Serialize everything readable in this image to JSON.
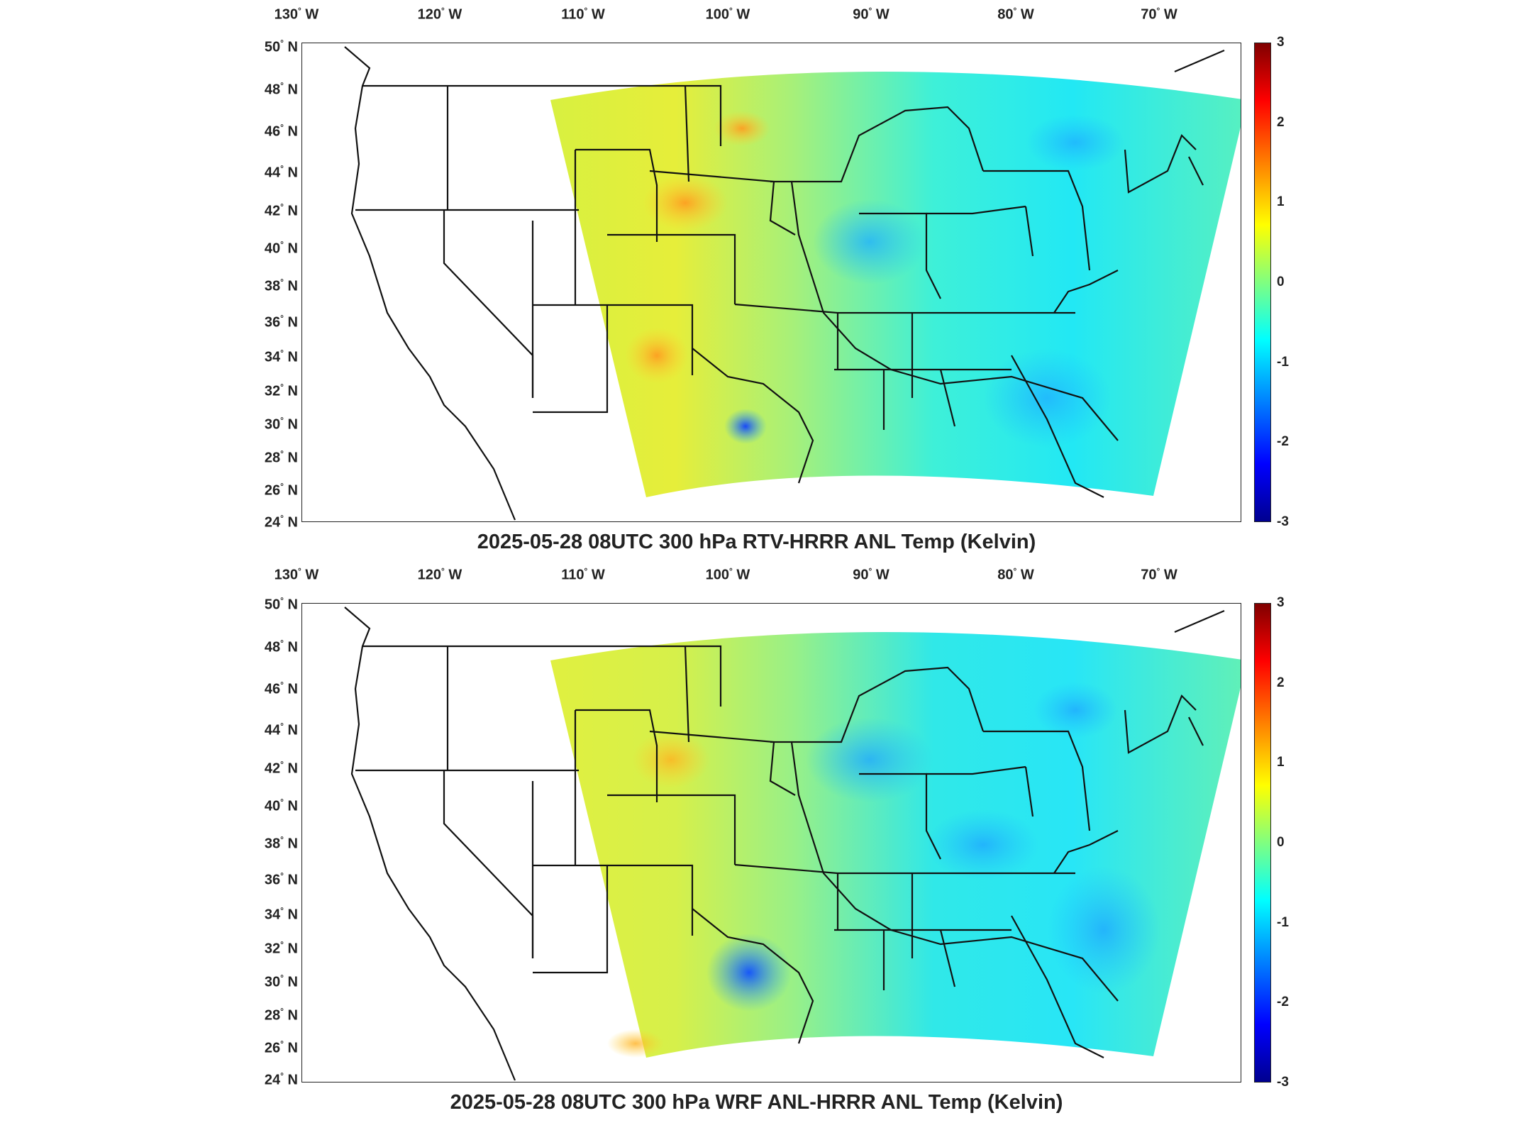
{
  "panels": [
    {
      "title": "2025-05-28 08UTC 300 hPa RTV-HRRR ANL Temp (Kelvin)",
      "longitude_labels": [
        "130",
        "120",
        "110",
        "100",
        "90",
        "80",
        "70"
      ],
      "latitude_labels": [
        "50",
        "48",
        "46",
        "44",
        "42",
        "40",
        "38",
        "36",
        "34",
        "32",
        "30",
        "28",
        "26",
        "24"
      ],
      "lon_suffix": "W",
      "lat_suffix": "N",
      "colorbar_ticks": [
        "3",
        "2",
        "1",
        "0",
        "-1",
        "-2",
        "-3"
      ]
    },
    {
      "title": "2025-05-28 08UTC 300 hPa WRF ANL-HRRR ANL Temp (Kelvin)",
      "longitude_labels": [
        "130",
        "120",
        "110",
        "100",
        "90",
        "80",
        "70"
      ],
      "latitude_labels": [
        "50",
        "48",
        "46",
        "44",
        "42",
        "40",
        "38",
        "36",
        "34",
        "32",
        "30",
        "28",
        "26",
        "24"
      ],
      "lon_suffix": "W",
      "lat_suffix": "N",
      "colorbar_ticks": [
        "3",
        "2",
        "1",
        "0",
        "-1",
        "-2",
        "-3"
      ]
    }
  ],
  "colormap": [
    "#00008f",
    "#0000ff",
    "#0080ff",
    "#00ffff",
    "#80ff80",
    "#ffff00",
    "#ff8000",
    "#ff0000",
    "#800000"
  ],
  "colorbar_range": [
    -3,
    3
  ]
}
